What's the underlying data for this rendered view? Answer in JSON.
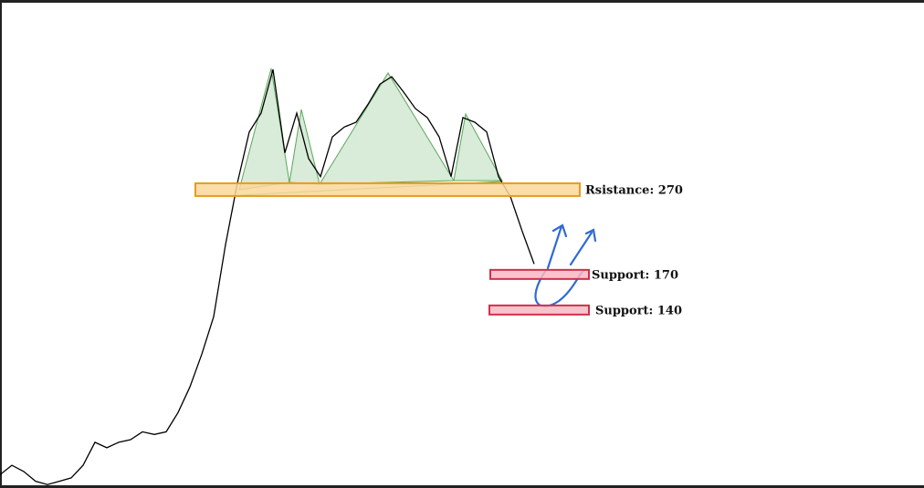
{
  "chart_data": {
    "type": "line",
    "log_scale": true,
    "color": "#000000",
    "values": [
      57,
      60,
      58,
      55,
      54,
      55,
      56,
      60,
      68,
      66,
      68,
      69,
      72,
      71,
      72,
      80,
      92,
      110,
      135,
      200,
      280,
      370,
      410,
      520,
      330,
      410,
      320,
      290,
      360,
      380,
      390,
      430,
      480,
      500,
      460,
      420,
      400,
      360,
      290,
      400,
      390,
      370,
      290,
      260,
      215,
      180
    ],
    "ylim": [
      53,
      760
    ],
    "levels": [
      {
        "label": "Rsistance: 270",
        "value": 270,
        "color": "#e69c1e"
      },
      {
        "label": "Support: 170",
        "value": 170,
        "color": "#d0304a"
      },
      {
        "label": "Support: 140",
        "value": 140,
        "color": "#d0304a"
      }
    ]
  }
}
